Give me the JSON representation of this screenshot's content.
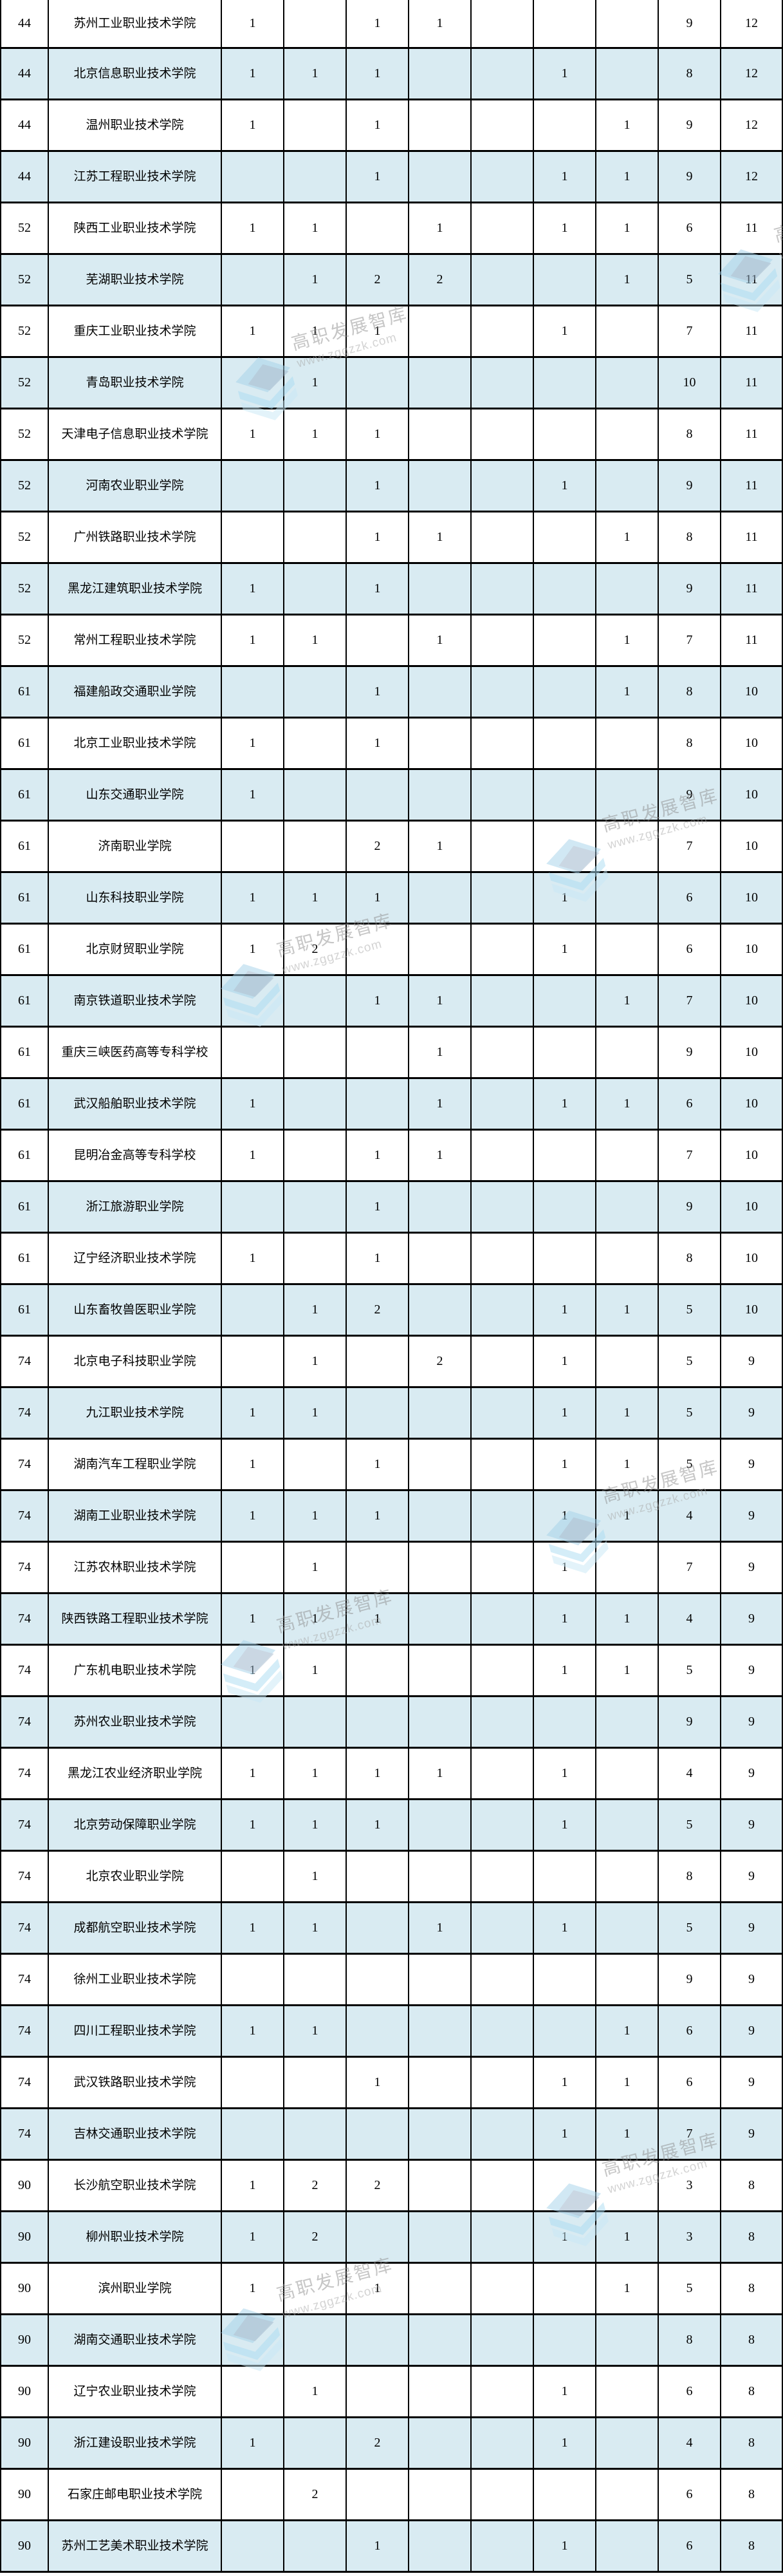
{
  "table": {
    "rows": [
      {
        "rank": "44",
        "name": "苏州工业职业技术学院",
        "values": [
          "1",
          "",
          "1",
          "1",
          "",
          "",
          "",
          "9",
          "12"
        ]
      },
      {
        "rank": "44",
        "name": "北京信息职业技术学院",
        "values": [
          "1",
          "1",
          "1",
          "",
          "",
          "1",
          "",
          "8",
          "12"
        ]
      },
      {
        "rank": "44",
        "name": "温州职业技术学院",
        "values": [
          "1",
          "",
          "1",
          "",
          "",
          "",
          "1",
          "9",
          "12"
        ]
      },
      {
        "rank": "44",
        "name": "江苏工程职业技术学院",
        "values": [
          "",
          "",
          "1",
          "",
          "",
          "1",
          "1",
          "9",
          "12"
        ]
      },
      {
        "rank": "52",
        "name": "陕西工业职业技术学院",
        "values": [
          "1",
          "1",
          "",
          "1",
          "",
          "1",
          "1",
          "6",
          "11"
        ]
      },
      {
        "rank": "52",
        "name": "芜湖职业技术学院",
        "values": [
          "",
          "1",
          "2",
          "2",
          "",
          "",
          "1",
          "5",
          "11"
        ]
      },
      {
        "rank": "52",
        "name": "重庆工业职业技术学院",
        "values": [
          "1",
          "1",
          "1",
          "",
          "",
          "1",
          "",
          "7",
          "11"
        ]
      },
      {
        "rank": "52",
        "name": "青岛职业技术学院",
        "values": [
          "",
          "1",
          "",
          "",
          "",
          "",
          "",
          "10",
          "11"
        ]
      },
      {
        "rank": "52",
        "name": "天津电子信息职业技术学院",
        "values": [
          "1",
          "1",
          "1",
          "",
          "",
          "",
          "",
          "8",
          "11"
        ]
      },
      {
        "rank": "52",
        "name": "河南农业职业学院",
        "values": [
          "",
          "",
          "1",
          "",
          "",
          "1",
          "",
          "9",
          "11"
        ]
      },
      {
        "rank": "52",
        "name": "广州铁路职业技术学院",
        "values": [
          "",
          "",
          "1",
          "1",
          "",
          "",
          "1",
          "8",
          "11"
        ]
      },
      {
        "rank": "52",
        "name": "黑龙江建筑职业技术学院",
        "values": [
          "1",
          "",
          "1",
          "",
          "",
          "",
          "",
          "9",
          "11"
        ]
      },
      {
        "rank": "52",
        "name": "常州工程职业技术学院",
        "values": [
          "1",
          "1",
          "",
          "1",
          "",
          "",
          "1",
          "7",
          "11"
        ]
      },
      {
        "rank": "61",
        "name": "福建船政交通职业学院",
        "values": [
          "",
          "",
          "1",
          "",
          "",
          "",
          "1",
          "8",
          "10"
        ]
      },
      {
        "rank": "61",
        "name": "北京工业职业技术学院",
        "values": [
          "1",
          "",
          "1",
          "",
          "",
          "",
          "",
          "8",
          "10"
        ]
      },
      {
        "rank": "61",
        "name": "山东交通职业学院",
        "values": [
          "1",
          "",
          "",
          "",
          "",
          "",
          "",
          "9",
          "10"
        ]
      },
      {
        "rank": "61",
        "name": "济南职业学院",
        "values": [
          "",
          "",
          "2",
          "1",
          "",
          "",
          "",
          "7",
          "10"
        ]
      },
      {
        "rank": "61",
        "name": "山东科技职业学院",
        "values": [
          "1",
          "1",
          "1",
          "",
          "",
          "1",
          "",
          "6",
          "10"
        ]
      },
      {
        "rank": "61",
        "name": "北京财贸职业学院",
        "values": [
          "1",
          "2",
          "",
          "",
          "",
          "1",
          "",
          "6",
          "10"
        ]
      },
      {
        "rank": "61",
        "name": "南京铁道职业技术学院",
        "values": [
          "",
          "",
          "1",
          "1",
          "",
          "",
          "1",
          "7",
          "10"
        ]
      },
      {
        "rank": "61",
        "name": "重庆三峡医药高等专科学校",
        "values": [
          "",
          "",
          "",
          "1",
          "",
          "",
          "",
          "9",
          "10"
        ]
      },
      {
        "rank": "61",
        "name": "武汉船舶职业技术学院",
        "values": [
          "1",
          "",
          "",
          "1",
          "",
          "1",
          "1",
          "6",
          "10"
        ]
      },
      {
        "rank": "61",
        "name": "昆明冶金高等专科学校",
        "values": [
          "1",
          "",
          "1",
          "1",
          "",
          "",
          "",
          "7",
          "10"
        ]
      },
      {
        "rank": "61",
        "name": "浙江旅游职业学院",
        "values": [
          "",
          "",
          "1",
          "",
          "",
          "",
          "",
          "9",
          "10"
        ]
      },
      {
        "rank": "61",
        "name": "辽宁经济职业技术学院",
        "values": [
          "1",
          "",
          "1",
          "",
          "",
          "",
          "",
          "8",
          "10"
        ]
      },
      {
        "rank": "61",
        "name": "山东畜牧兽医职业学院",
        "values": [
          "",
          "1",
          "2",
          "",
          "",
          "1",
          "1",
          "5",
          "10"
        ]
      },
      {
        "rank": "74",
        "name": "北京电子科技职业学院",
        "values": [
          "",
          "1",
          "",
          "2",
          "",
          "1",
          "",
          "5",
          "9"
        ]
      },
      {
        "rank": "74",
        "name": "九江职业技术学院",
        "values": [
          "1",
          "1",
          "",
          "",
          "",
          "1",
          "1",
          "5",
          "9"
        ]
      },
      {
        "rank": "74",
        "name": "湖南汽车工程职业学院",
        "values": [
          "1",
          "",
          "1",
          "",
          "",
          "1",
          "1",
          "5",
          "9"
        ]
      },
      {
        "rank": "74",
        "name": "湖南工业职业技术学院",
        "values": [
          "1",
          "1",
          "1",
          "",
          "",
          "1",
          "1",
          "4",
          "9"
        ]
      },
      {
        "rank": "74",
        "name": "江苏农林职业技术学院",
        "values": [
          "",
          "1",
          "",
          "",
          "",
          "1",
          "",
          "7",
          "9"
        ]
      },
      {
        "rank": "74",
        "name": "陕西铁路工程职业技术学院",
        "values": [
          "1",
          "1",
          "1",
          "",
          "",
          "1",
          "1",
          "4",
          "9"
        ]
      },
      {
        "rank": "74",
        "name": "广东机电职业技术学院",
        "values": [
          "1",
          "1",
          "",
          "",
          "",
          "1",
          "1",
          "5",
          "9"
        ]
      },
      {
        "rank": "74",
        "name": "苏州农业职业技术学院",
        "values": [
          "",
          "",
          "",
          "",
          "",
          "",
          "",
          "9",
          "9"
        ]
      },
      {
        "rank": "74",
        "name": "黑龙江农业经济职业学院",
        "values": [
          "1",
          "1",
          "1",
          "1",
          "",
          "1",
          "",
          "4",
          "9"
        ]
      },
      {
        "rank": "74",
        "name": "北京劳动保障职业学院",
        "values": [
          "1",
          "1",
          "1",
          "",
          "",
          "1",
          "",
          "5",
          "9"
        ]
      },
      {
        "rank": "74",
        "name": "北京农业职业学院",
        "values": [
          "",
          "1",
          "",
          "",
          "",
          "",
          "",
          "8",
          "9"
        ]
      },
      {
        "rank": "74",
        "name": "成都航空职业技术学院",
        "values": [
          "1",
          "1",
          "",
          "1",
          "",
          "1",
          "",
          "5",
          "9"
        ]
      },
      {
        "rank": "74",
        "name": "徐州工业职业技术学院",
        "values": [
          "",
          "",
          "",
          "",
          "",
          "",
          "",
          "9",
          "9"
        ]
      },
      {
        "rank": "74",
        "name": "四川工程职业技术学院",
        "values": [
          "1",
          "1",
          "",
          "",
          "",
          "",
          "1",
          "6",
          "9"
        ]
      },
      {
        "rank": "74",
        "name": "武汉铁路职业技术学院",
        "values": [
          "",
          "",
          "1",
          "",
          "",
          "1",
          "1",
          "6",
          "9"
        ]
      },
      {
        "rank": "74",
        "name": "吉林交通职业技术学院",
        "values": [
          "",
          "",
          "",
          "",
          "",
          "1",
          "1",
          "7",
          "9"
        ]
      },
      {
        "rank": "90",
        "name": "长沙航空职业技术学院",
        "values": [
          "1",
          "2",
          "2",
          "",
          "",
          "",
          "",
          "3",
          "8"
        ]
      },
      {
        "rank": "90",
        "name": "柳州职业技术学院",
        "values": [
          "1",
          "2",
          "",
          "",
          "",
          "1",
          "1",
          "3",
          "8"
        ]
      },
      {
        "rank": "90",
        "name": "滨州职业学院",
        "values": [
          "1",
          "",
          "1",
          "",
          "",
          "",
          "1",
          "5",
          "8"
        ]
      },
      {
        "rank": "90",
        "name": "湖南交通职业技术学院",
        "values": [
          "",
          "",
          "",
          "",
          "",
          "",
          "",
          "8",
          "8"
        ]
      },
      {
        "rank": "90",
        "name": "辽宁农业职业技术学院",
        "values": [
          "",
          "1",
          "",
          "",
          "",
          "1",
          "",
          "6",
          "8"
        ]
      },
      {
        "rank": "90",
        "name": "浙江建设职业技术学院",
        "values": [
          "1",
          "",
          "2",
          "",
          "",
          "1",
          "",
          "4",
          "8"
        ]
      },
      {
        "rank": "90",
        "name": "石家庄邮电职业技术学院",
        "values": [
          "",
          "2",
          "",
          "",
          "",
          "",
          "",
          "6",
          "8"
        ]
      },
      {
        "rank": "90",
        "name": "苏州工艺美术职业技术学院",
        "values": [
          "",
          "",
          "1",
          "",
          "",
          "1",
          "",
          "6",
          "8"
        ]
      }
    ]
  },
  "watermark": {
    "brand": "高职发展智库",
    "url": "www.zggzzk.com"
  },
  "colors": {
    "stripe": "#d9ebf2",
    "border": "#000000",
    "watermark_text": "#8f8f8f",
    "watermark_logo_blue": "#a4d2ea"
  }
}
